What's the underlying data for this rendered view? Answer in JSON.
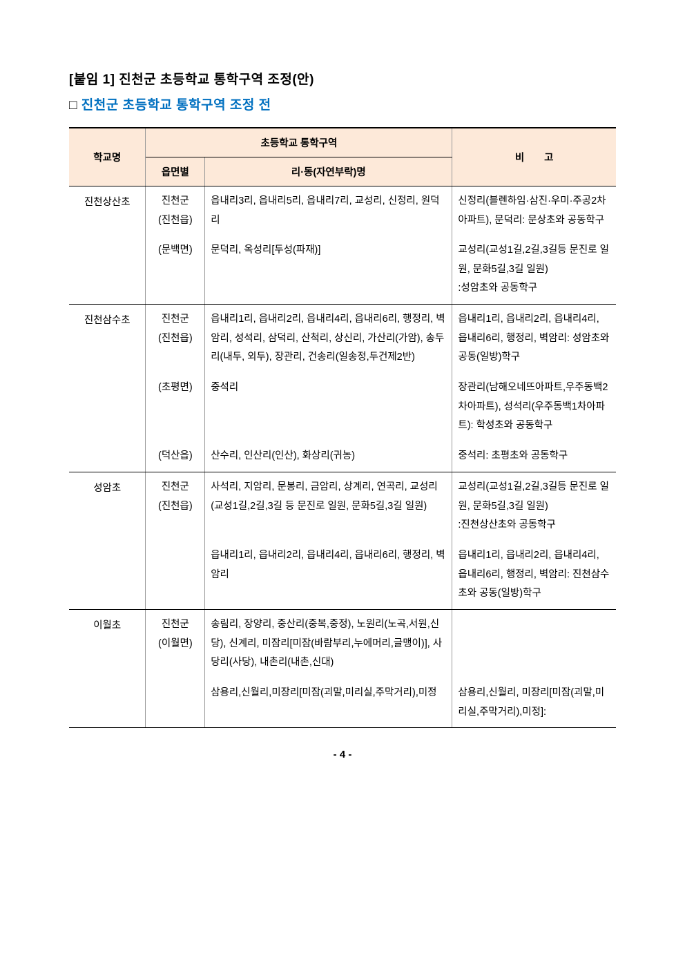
{
  "header": {
    "line1": "[붙임 1] 진천군 초등학교 통학구역 조정(안)",
    "line2_prefix": "□ ",
    "line2": "진천군 초등학교 통학구역 조정 전"
  },
  "table": {
    "col1": "학교명",
    "col2_top": "초등학교 통학구역",
    "col2a": "읍면별",
    "col2b": "리·동(자연부락)명",
    "col3": "비　　고"
  },
  "rows": [
    {
      "school": "진천상산초",
      "region_blocks": [
        {
          "region": "진천군\n(진천읍)",
          "detail": "읍내리3리, 읍내리5리, 읍내리7리, 교성리, 신정리, 원덕리"
        },
        {
          "region": "(문백면)",
          "detail": "문덕리, 옥성리[두성(파재)]"
        }
      ],
      "note_blocks": [
        "신정리(블렌하임·삼진·우미·주공2차 아파트), 문덕리: 문상초와 공동학구",
        "교성리(교성1길,2길,3길등 문진로 일원, 문화5길,3길 일원)\n:성암초와 공동학구"
      ]
    },
    {
      "school": "진천삼수초",
      "region_blocks": [
        {
          "region": "진천군\n(진천읍)",
          "detail": "읍내리1리, 읍내리2리, 읍내리4리, 읍내리6리, 행정리, 벽암리, 성석리, 삼덕리, 산척리, 상신리, 가산리(가암), 송두리(내두, 외두), 장관리, 건송리(일송정,두건제2반)"
        },
        {
          "region": "(초평면)",
          "detail": "중석리"
        },
        {
          "region": "(덕산읍)",
          "detail": "산수리, 인산리(인산), 화상리(귀농)"
        }
      ],
      "note_blocks": [
        "읍내리1리, 읍내리2리, 읍내리4리, 읍내리6리, 행정리, 벽암리: 성암초와 공동(일방)학구",
        "장관리(남해오네뜨아파트,우주동백2차아파트), 성석리(우주동백1차아파트): 학성초와 공동학구",
        "중석리: 초평초와 공동학구"
      ]
    },
    {
      "school": "성암초",
      "region_blocks": [
        {
          "region": "진천군\n(진천읍)",
          "detail": "사석리, 지암리, 문봉리, 금암리, 상계리, 연곡리, 교성리(교성1길,2길,3길 등 문진로 일원, 문화5길,3길 일원)"
        },
        {
          "region": "",
          "detail": "읍내리1리, 읍내리2리, 읍내리4리, 읍내리6리, 행정리, 벽암리"
        }
      ],
      "note_blocks": [
        "교성리(교성1길,2길,3길등 문진로 일원, 문화5길,3길 일원)\n:진천상산초와 공동학구",
        "읍내리1리, 읍내리2리, 읍내리4리, 읍내리6리, 행정리, 벽암리: 진천삼수초와 공동(일방)학구"
      ]
    },
    {
      "school": "이월초",
      "region_blocks": [
        {
          "region": "진천군\n(이월면)",
          "detail": "송림리, 장양리, 중산리(중복,중정), 노원리(노곡,서원,신당), 신계리, 미잠리[미잠(바람부리,누에머리,글맹이)], 사당리(사당), 내촌리(내촌,신대)"
        },
        {
          "region": "",
          "detail": "삼용리,신월리,미장리[미잠(괴말,미리실,주막거리),미정"
        }
      ],
      "note_blocks": [
        "",
        "삼용리,신월리, 미장리[미잠(괴말,미리실,주막거리),미정]:"
      ]
    }
  ],
  "page_number": "- 4 -",
  "colors": {
    "header_bg": "#fde9d9",
    "header_blue": "#0070c0"
  }
}
